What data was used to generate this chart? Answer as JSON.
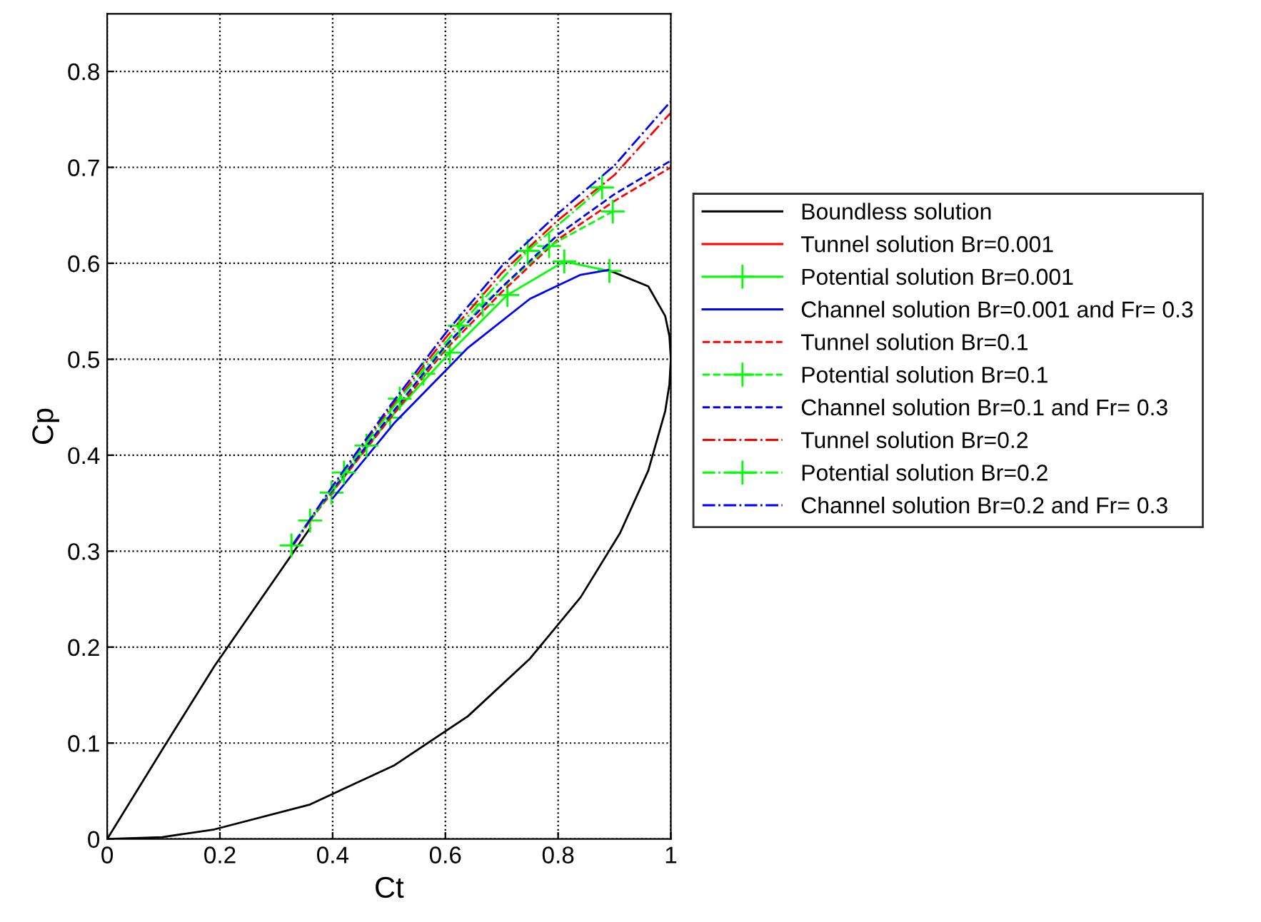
{
  "chart_data": {
    "type": "line",
    "xlabel": "Ct",
    "ylabel": "Cp",
    "xlim": [
      0,
      1
    ],
    "ylim": [
      0,
      0.86
    ],
    "xticks": [
      0,
      0.2,
      0.4,
      0.6,
      0.8,
      1
    ],
    "yticks": [
      0,
      0.1,
      0.2,
      0.3,
      0.4,
      0.5,
      0.6,
      0.7,
      0.8
    ],
    "grid": true,
    "legend": "right",
    "series": [
      {
        "name": "Boundless solution",
        "color": "#000000",
        "line_style": "solid",
        "marker": "none",
        "x": [
          0,
          0.0975,
          0.19,
          0.36,
          0.51,
          0.64,
          0.75,
          0.84,
          0.889,
          0.96,
          0.99,
          0.9975,
          1.0,
          0.9975,
          0.99,
          0.96,
          0.91,
          0.84,
          0.75,
          0.64,
          0.51,
          0.36,
          0.19,
          0.0975,
          0
        ],
        "values": [
          0,
          0.093,
          0.18,
          0.324,
          null,
          null,
          null,
          null,
          0.593,
          0.576,
          0.545,
          0.524,
          0.5,
          0.474,
          0.446,
          0.384,
          0.319,
          0.252,
          0.188,
          0.128,
          0.077,
          0.036,
          0.01,
          0.002,
          0
        ]
      },
      {
        "name": "Tunnel solution Br=0.001",
        "color": "#ff0000",
        "line_style": "solid",
        "marker": "none"
      },
      {
        "name": "Potential solution Br=0.001",
        "color": "#00ff00",
        "line_style": "solid",
        "marker": "cross",
        "x": [
          0.398,
          0.502,
          0.608,
          0.71,
          0.811,
          0.891
        ],
        "values": [
          0.361,
          0.439,
          0.507,
          0.567,
          0.602,
          0.592
        ]
      },
      {
        "name": "Channel solution Br=0.001 and Fr= 0.3",
        "color": "#0000ff",
        "line_style": "solid",
        "marker": "none",
        "x": [
          0.4,
          0.51,
          0.64,
          0.75,
          0.84,
          0.889
        ],
        "values": [
          0.355,
          0.434,
          0.512,
          0.563,
          0.588,
          0.593
        ]
      },
      {
        "name": "Tunnel solution Br=0.1",
        "color": "#ff0000",
        "line_style": "dashed",
        "marker": "none",
        "x": [
          0.36,
          0.4,
          0.5,
          0.6,
          0.7,
          0.8,
          0.9,
          1.0
        ],
        "values": [
          0.332,
          0.362,
          0.437,
          0.51,
          0.57,
          0.625,
          0.665,
          0.7
        ]
      },
      {
        "name": "Potential solution Br=0.1",
        "color": "#00ff00",
        "line_style": "dashed",
        "marker": "cross",
        "x": [
          0.36,
          0.46,
          0.561,
          0.666,
          0.784,
          0.897
        ],
        "values": [
          0.332,
          0.41,
          0.485,
          0.557,
          0.618,
          0.654
        ]
      },
      {
        "name": "Channel solution Br=0.1 and Fr= 0.3",
        "color": "#0000ff",
        "line_style": "dashed",
        "marker": "none",
        "x": [
          0.36,
          0.4,
          0.5,
          0.6,
          0.7,
          0.8,
          0.9,
          1.0
        ],
        "values": [
          0.333,
          0.364,
          0.44,
          0.514,
          0.575,
          0.63,
          0.672,
          0.707
        ]
      },
      {
        "name": "Tunnel solution Br=0.2",
        "color": "#ff0000",
        "line_style": "dashdot",
        "marker": "none",
        "x": [
          0.33,
          0.4,
          0.5,
          0.6,
          0.7,
          0.8,
          0.9,
          1.0
        ],
        "values": [
          0.306,
          0.366,
          0.447,
          0.522,
          0.59,
          0.645,
          0.692,
          0.757
        ]
      },
      {
        "name": "Potential solution Br=0.2",
        "color": "#00ff00",
        "line_style": "dashdot",
        "marker": "cross",
        "x": [
          0.327,
          0.42,
          0.519,
          0.625,
          0.746,
          0.878
        ],
        "values": [
          0.306,
          0.382,
          0.459,
          0.535,
          0.613,
          0.679
        ]
      },
      {
        "name": "Channel solution Br=0.2 and Fr= 0.3",
        "color": "#0000ff",
        "line_style": "dashdot",
        "marker": "none",
        "x": [
          0.33,
          0.4,
          0.5,
          0.6,
          0.7,
          0.8,
          0.9,
          1.0
        ],
        "values": [
          0.307,
          0.368,
          0.45,
          0.527,
          0.597,
          0.652,
          0.702,
          0.769
        ]
      }
    ]
  }
}
